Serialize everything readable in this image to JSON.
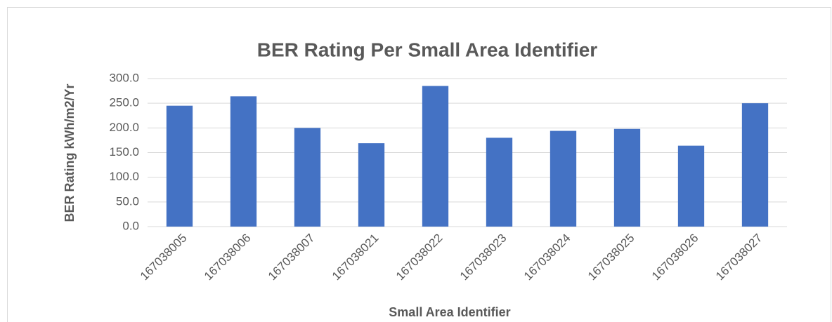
{
  "chart_data": {
    "type": "bar",
    "title": "BER Rating Per Small Area Identifier",
    "x_label": "Small Area Identifier",
    "y_label": "BER Rating kWh/m2/Yr",
    "categories": [
      "167038005",
      "167038006",
      "167038007",
      "167038021",
      "167038022",
      "167038023",
      "167038024",
      "167038025",
      "167038026",
      "167038027"
    ],
    "values": [
      245,
      264,
      200,
      169,
      285,
      180,
      194,
      198,
      164,
      250
    ],
    "color": "#4472c4",
    "ylim": [
      0,
      300
    ],
    "yticks": [
      {
        "value": 0,
        "label": "0.0"
      },
      {
        "value": 50,
        "label": "50.0"
      },
      {
        "value": 100,
        "label": "100.0"
      },
      {
        "value": 150,
        "label": "150.0"
      },
      {
        "value": 200,
        "label": "200.0"
      },
      {
        "value": 250,
        "label": "250.0"
      },
      {
        "value": 300,
        "label": "300.0"
      }
    ],
    "grid": true
  }
}
